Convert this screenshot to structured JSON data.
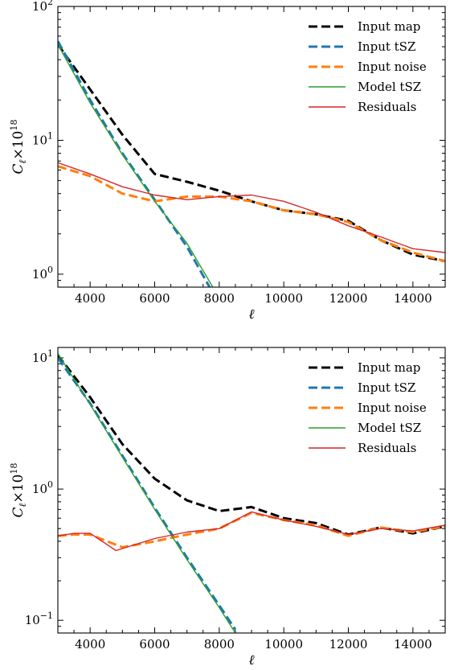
{
  "chart_data": [
    {
      "type": "line",
      "title": "",
      "xlabel": "ℓ",
      "ylabel": "C_ℓ × 10^18",
      "ylabel_parts": {
        "base": "C",
        "sub": "ℓ",
        "times": "×10",
        "sup": "18"
      },
      "xlim": [
        3000,
        15000
      ],
      "ylim": [
        0.8,
        100
      ],
      "yscale": "log",
      "xticks": [
        4000,
        6000,
        8000,
        10000,
        12000,
        14000
      ],
      "xtick_labels": [
        "4000",
        "6000",
        "8000",
        "10000",
        "12000",
        "14000"
      ],
      "ytick_labels": [
        {
          "base": "10",
          "exp": "2"
        },
        {
          "base": "10",
          "exp": "1"
        },
        {
          "base": "10",
          "exp": "0"
        }
      ],
      "legend_position": "top-right",
      "series": [
        {
          "name": "Input map",
          "color": "#000000",
          "style": "dashed",
          "x": [
            3000,
            4000,
            5000,
            6000,
            7000,
            8000,
            9000,
            10000,
            11000,
            12000,
            13000,
            14000,
            15000
          ],
          "y": [
            52,
            24,
            11,
            5.6,
            4.9,
            4.2,
            3.5,
            3.0,
            2.8,
            2.5,
            1.8,
            1.4,
            1.25
          ]
        },
        {
          "name": "Input tSZ",
          "color": "#1f77b4",
          "style": "dashed",
          "x": [
            3000,
            4000,
            5000,
            6000,
            7000,
            7700
          ],
          "y": [
            55,
            20,
            8,
            3.6,
            1.6,
            0.8
          ]
        },
        {
          "name": "Input noise",
          "color": "#ff7f0e",
          "style": "dashed",
          "x": [
            3000,
            4000,
            5000,
            6000,
            7000,
            8000,
            9000,
            10000,
            11000,
            12000,
            13000,
            14000,
            15000
          ],
          "y": [
            6.4,
            5.4,
            4.0,
            3.5,
            3.8,
            3.8,
            3.5,
            3.0,
            2.8,
            2.45,
            1.8,
            1.45,
            1.25
          ]
        },
        {
          "name": "Model tSZ",
          "color": "#2ca02c",
          "style": "solid",
          "x": [
            3000,
            4000,
            5000,
            6000,
            7000,
            7800
          ],
          "y": [
            52,
            19,
            7.8,
            3.5,
            1.7,
            0.8
          ]
        },
        {
          "name": "Residuals",
          "color": "#d62728",
          "style": "solid",
          "x": [
            3000,
            4000,
            5000,
            6000,
            7000,
            8000,
            9000,
            10000,
            11000,
            12000,
            13000,
            14000,
            15000
          ],
          "y": [
            6.8,
            5.6,
            4.5,
            3.9,
            3.6,
            3.8,
            3.9,
            3.5,
            2.9,
            2.3,
            1.9,
            1.55,
            1.45
          ]
        }
      ]
    },
    {
      "type": "line",
      "title": "",
      "xlabel": "ℓ",
      "ylabel": "C_ℓ × 10^18",
      "ylabel_parts": {
        "base": "C",
        "sub": "ℓ",
        "times": "×10",
        "sup": "18"
      },
      "xlim": [
        3000,
        15000
      ],
      "ylim": [
        0.08,
        12
      ],
      "yscale": "log",
      "xticks": [
        4000,
        6000,
        8000,
        10000,
        12000,
        14000
      ],
      "xtick_labels": [
        "4000",
        "6000",
        "8000",
        "10000",
        "12000",
        "14000"
      ],
      "ytick_labels": [
        {
          "base": "10",
          "exp": "1"
        },
        {
          "base": "10",
          "exp": "0"
        },
        {
          "base": "10",
          "exp": "−1"
        }
      ],
      "legend_position": "top-right",
      "series": [
        {
          "name": "Input map",
          "color": "#000000",
          "style": "dashed",
          "x": [
            3000,
            4000,
            5000,
            6000,
            7000,
            8000,
            9000,
            10000,
            11000,
            12000,
            13000,
            14000,
            15000
          ],
          "y": [
            10.5,
            5.0,
            2.2,
            1.2,
            0.82,
            0.68,
            0.73,
            0.6,
            0.55,
            0.45,
            0.51,
            0.46,
            0.52
          ]
        },
        {
          "name": "Input tSZ",
          "color": "#1f77b4",
          "style": "dashed",
          "x": [
            3000,
            4000,
            5000,
            6000,
            7000,
            8000,
            8500
          ],
          "y": [
            10,
            4.5,
            1.8,
            0.72,
            0.3,
            0.13,
            0.085
          ]
        },
        {
          "name": "Input noise",
          "color": "#ff7f0e",
          "style": "dashed",
          "x": [
            3000,
            3500,
            4000,
            5000,
            6000,
            7000,
            8000,
            9000,
            10000,
            11000,
            12000,
            13000,
            14000,
            15000
          ],
          "y": [
            0.44,
            0.45,
            0.45,
            0.36,
            0.4,
            0.45,
            0.5,
            0.66,
            0.58,
            0.53,
            0.44,
            0.51,
            0.47,
            0.52
          ]
        },
        {
          "name": "Model tSZ",
          "color": "#2ca02c",
          "style": "solid",
          "x": [
            3000,
            4000,
            5000,
            6000,
            7000,
            8000,
            8500
          ],
          "y": [
            10.8,
            4.4,
            1.75,
            0.7,
            0.29,
            0.125,
            0.08
          ]
        },
        {
          "name": "Residuals",
          "color": "#d62728",
          "style": "solid",
          "x": [
            3000,
            3500,
            4000,
            4800,
            6000,
            7000,
            8000,
            9000,
            10000,
            11000,
            12000,
            13000,
            14000,
            15000
          ],
          "y": [
            0.44,
            0.46,
            0.46,
            0.34,
            0.42,
            0.47,
            0.5,
            0.67,
            0.58,
            0.52,
            0.45,
            0.5,
            0.48,
            0.53
          ]
        }
      ]
    }
  ]
}
